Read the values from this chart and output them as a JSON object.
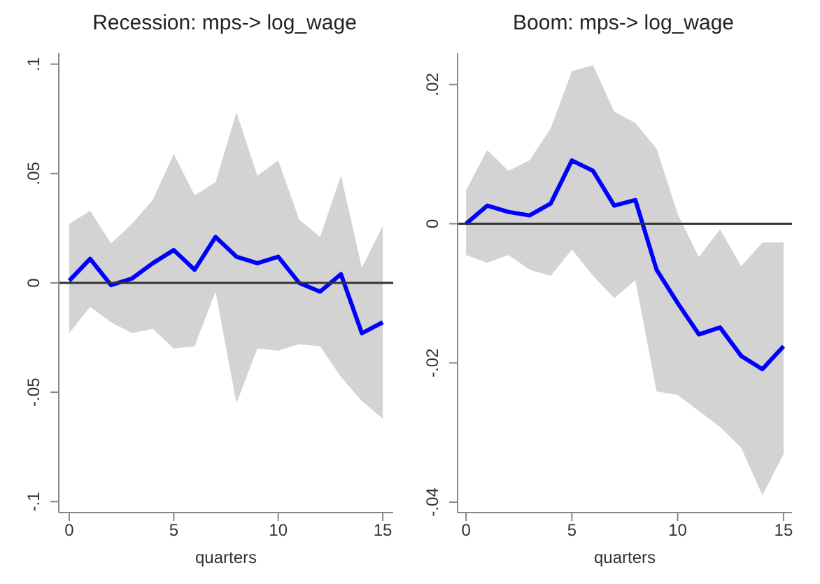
{
  "chart_data": [
    {
      "type": "line",
      "title": "Recession: mps-> log_wage",
      "xlabel": "quarters",
      "x": [
        0,
        1,
        2,
        3,
        4,
        5,
        6,
        7,
        8,
        9,
        10,
        11,
        12,
        13,
        14,
        15
      ],
      "xlim": [
        -0.5,
        15.5
      ],
      "xticks": [
        0,
        5,
        10,
        15
      ],
      "ylim": [
        -0.105,
        0.105
      ],
      "yticks": [
        {
          "value": -0.1,
          "label": "-.1"
        },
        {
          "value": -0.05,
          "label": "-.05"
        },
        {
          "value": 0,
          "label": "0"
        },
        {
          "value": 0.05,
          "label": ".05"
        },
        {
          "value": 0.1,
          "label": ".1"
        }
      ],
      "marker": "none",
      "line_style": "solid",
      "series": [
        {
          "color": "#0000ff",
          "values": [
            0.001,
            0.011,
            -0.001,
            0.002,
            0.009,
            0.015,
            0.006,
            0.021,
            0.012,
            0.009,
            0.012,
            0,
            -0.004,
            0.004,
            -0.023,
            -0.018
          ],
          "upper": [
            0.027,
            0.033,
            0.018,
            0.027,
            0.038,
            0.059,
            0.04,
            0.046,
            0.078,
            0.049,
            0.056,
            0.029,
            0.021,
            0.049,
            0.007,
            0.026
          ],
          "lower": [
            -0.023,
            -0.011,
            -0.018,
            -0.023,
            -0.021,
            -0.03,
            -0.029,
            -0.004,
            -0.055,
            -0.03,
            -0.031,
            -0.028,
            -0.029,
            -0.043,
            -0.054,
            -0.062
          ]
        }
      ],
      "ref_lines": [
        {
          "axis": "y",
          "value": 0,
          "color": "#333333"
        }
      ]
    },
    {
      "type": "line",
      "title": "Boom: mps-> log_wage",
      "xlabel": "quarters",
      "x": [
        0,
        1,
        2,
        3,
        4,
        5,
        6,
        7,
        8,
        9,
        10,
        11,
        12,
        13,
        14,
        15
      ],
      "xlim": [
        -0.4,
        15.4
      ],
      "xticks": [
        0,
        5,
        10,
        15
      ],
      "ylim": [
        -0.0415,
        0.0245
      ],
      "yticks": [
        {
          "value": -0.04,
          "label": "-.04"
        },
        {
          "value": -0.02,
          "label": "-.02"
        },
        {
          "value": 0,
          "label": "0"
        },
        {
          "value": 0.02,
          "label": ".02"
        }
      ],
      "marker": "none",
      "line_style": "solid",
      "series": [
        {
          "color": "#0000ff",
          "values": [
            0,
            0.0026,
            0.0017,
            0.0012,
            0.0029,
            0.0091,
            0.0076,
            0.0026,
            0.0034,
            -0.0066,
            -0.0114,
            -0.0159,
            -0.0149,
            -0.019,
            -0.0209,
            -0.0176
          ],
          "upper": [
            0.0048,
            0.0106,
            0.0076,
            0.0091,
            0.0137,
            0.0219,
            0.0228,
            0.0161,
            0.0145,
            0.0108,
            0.0014,
            -0.0048,
            -0.0008,
            -0.0061,
            -0.0027,
            -0.0027
          ],
          "lower": [
            -0.0045,
            -0.0056,
            -0.0045,
            -0.0066,
            -0.0075,
            -0.0037,
            -0.0075,
            -0.0107,
            -0.0081,
            -0.0241,
            -0.0246,
            -0.0269,
            -0.0292,
            -0.0322,
            -0.039,
            -0.0331
          ]
        }
      ],
      "ref_lines": [
        {
          "axis": "y",
          "value": 0,
          "color": "#333333"
        }
      ]
    }
  ]
}
